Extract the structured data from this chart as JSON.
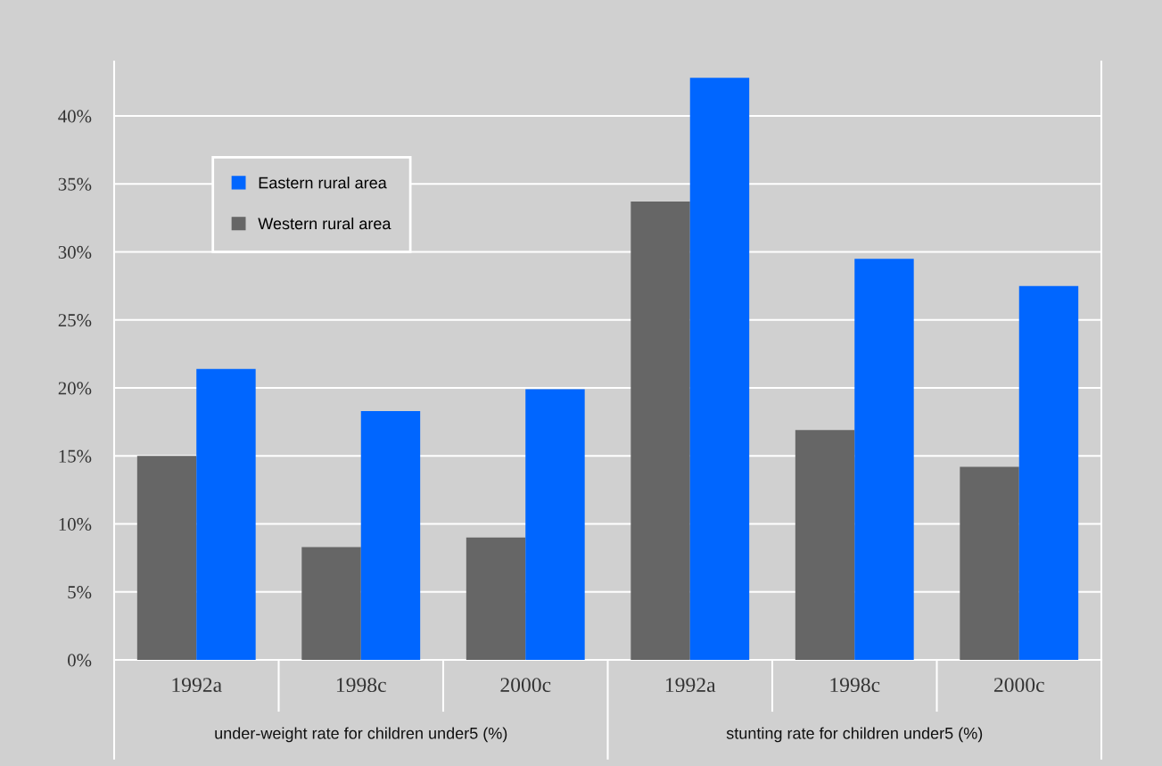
{
  "chart_data": {
    "type": "bar",
    "categories": [
      "1992a",
      "1998c",
      "2000c",
      "1992a",
      "1998c",
      "2000c"
    ],
    "series": [
      {
        "name": "Western rural area",
        "color": "#666666",
        "values": [
          15.0,
          8.3,
          9.0,
          33.7,
          16.9,
          14.2
        ]
      },
      {
        "name": "Eastern rural area",
        "color": "#0066ff",
        "values": [
          21.4,
          18.3,
          19.9,
          42.8,
          29.5,
          27.5
        ]
      }
    ],
    "annotations": [
      "under-weight rate for children under5 (%)",
      "stunting rate for children under5 (%)"
    ],
    "ylim": [
      0,
      44
    ],
    "yticks": [
      {
        "value": 0,
        "label": "0%"
      },
      {
        "value": 5,
        "label": "5%"
      },
      {
        "value": 10,
        "label": "10%"
      },
      {
        "value": 15,
        "label": "15%"
      },
      {
        "value": 20,
        "label": "20%"
      },
      {
        "value": 25,
        "label": "25%"
      },
      {
        "value": 30,
        "label": "30%"
      },
      {
        "value": 35,
        "label": "35%"
      },
      {
        "value": 40,
        "label": "40%"
      }
    ],
    "grid": "y",
    "legend": "top left"
  }
}
